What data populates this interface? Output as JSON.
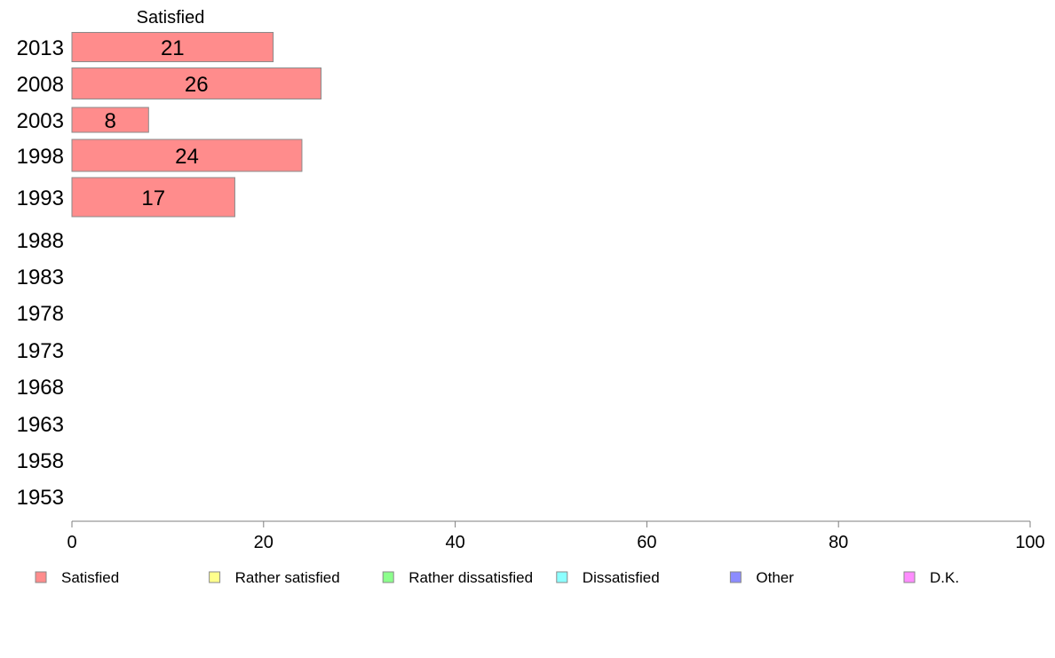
{
  "chart_data": {
    "type": "bar",
    "orientation": "horizontal",
    "stacked": true,
    "categories": [
      "2013",
      "2008",
      "2003",
      "1998",
      "1993",
      "1988",
      "1983",
      "1978",
      "1973",
      "1968",
      "1963",
      "1958",
      "1953"
    ],
    "series": [
      {
        "name": "Satisfied",
        "color": "#ff8c8c",
        "values": [
          21,
          26,
          8,
          24,
          17,
          null,
          null,
          null,
          null,
          null,
          null,
          null,
          null
        ]
      },
      {
        "name": "Rather satisfied",
        "color": "#ffff8c",
        "values": [
          null,
          null,
          null,
          null,
          null,
          null,
          null,
          null,
          null,
          null,
          null,
          null,
          null
        ]
      },
      {
        "name": "Rather dissatisfied",
        "color": "#8cff8c",
        "values": [
          null,
          null,
          null,
          null,
          null,
          null,
          null,
          null,
          null,
          null,
          null,
          null,
          null
        ]
      },
      {
        "name": "Dissatisfied",
        "color": "#8cffff",
        "values": [
          null,
          null,
          null,
          null,
          null,
          null,
          null,
          null,
          null,
          null,
          null,
          null,
          null
        ]
      },
      {
        "name": "Other",
        "color": "#8c8cff",
        "values": [
          null,
          null,
          null,
          null,
          null,
          null,
          null,
          null,
          null,
          null,
          null,
          null,
          null
        ]
      },
      {
        "name": "D.K.",
        "color": "#ff8cff",
        "values": [
          null,
          null,
          null,
          null,
          null,
          null,
          null,
          null,
          null,
          null,
          null,
          null,
          null
        ]
      }
    ],
    "column_header": "Satisfied",
    "xlim": [
      0,
      100
    ],
    "xticks": [
      0,
      20,
      40,
      60,
      80,
      100
    ],
    "grid": false,
    "legend_position": "bottom",
    "title": "",
    "xlabel": "",
    "ylabel": ""
  }
}
